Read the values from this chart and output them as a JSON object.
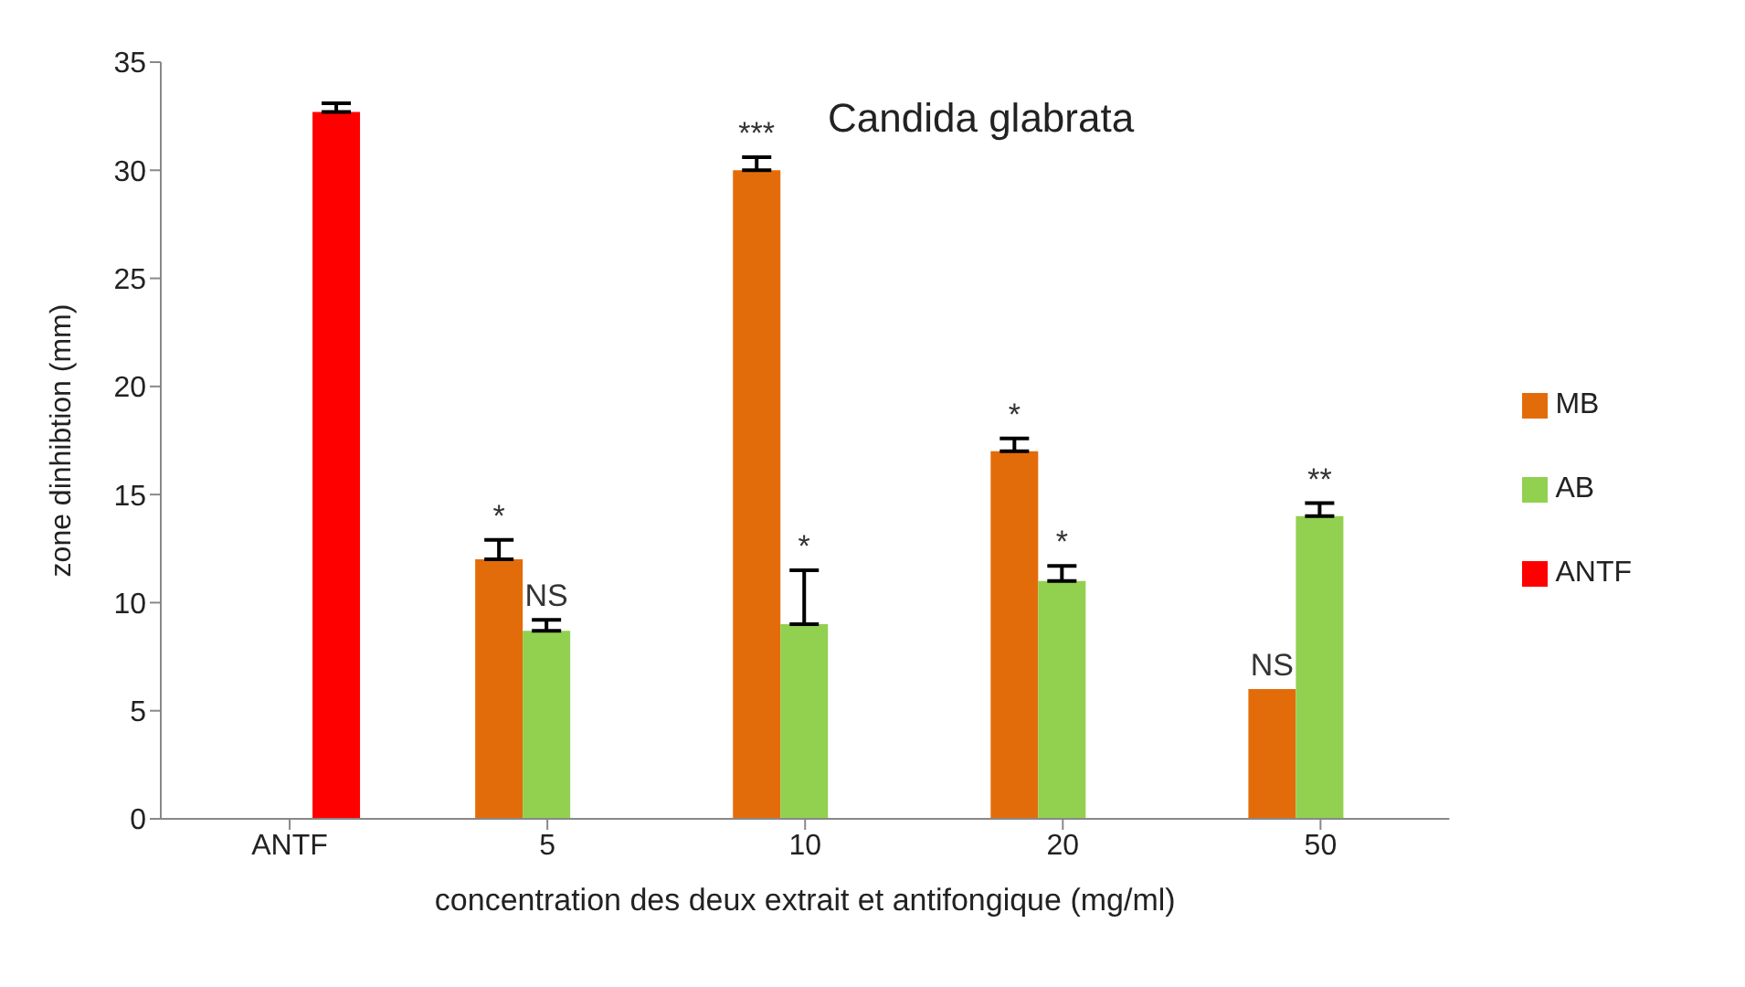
{
  "chart_data": {
    "type": "bar",
    "title": "Candida glabrata",
    "xlabel": "concentration des deux extrait et antifongique (mg/ml)",
    "ylabel": "zone dinhibtion (mm)",
    "categories": [
      "ANTF",
      "5",
      "10",
      "20",
      "50"
    ],
    "series": [
      {
        "name": "MB",
        "color": "#e36c0a",
        "values": [
          null,
          12,
          30,
          17,
          6
        ],
        "errors": [
          null,
          [
            12,
            12.9
          ],
          [
            30,
            30.6
          ],
          [
            17,
            17.6
          ],
          null
        ],
        "value_labels": [
          null,
          "*",
          "***",
          "*",
          "NS"
        ]
      },
      {
        "name": "AB",
        "color": "#92d050",
        "values": [
          null,
          8.7,
          9,
          11,
          14
        ],
        "errors": [
          null,
          [
            8.7,
            9.2
          ],
          [
            9,
            11.5
          ],
          [
            11,
            11.7
          ],
          [
            14,
            14.6
          ]
        ],
        "value_labels": [
          null,
          "NS",
          "*",
          "*",
          "**"
        ]
      },
      {
        "name": "ANTF",
        "color": "#ff0000",
        "values": [
          32.7,
          null,
          null,
          null,
          null
        ],
        "errors": [
          [
            32.7,
            33.1
          ],
          null,
          null,
          null,
          null
        ]
      }
    ],
    "ylim": [
      0,
      35
    ],
    "yticks": [
      0,
      5,
      10,
      15,
      20,
      25,
      30,
      35
    ],
    "grid": false,
    "legend": "right"
  }
}
